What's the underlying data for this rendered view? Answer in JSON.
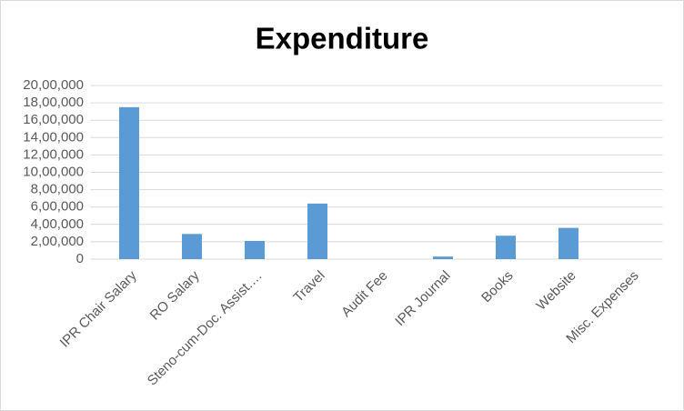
{
  "chart_data": {
    "type": "bar",
    "title": "Expenditure",
    "categories": [
      "IPR Chair Salary",
      "RO Salary",
      "Steno-cum-Doc. Assist.…",
      "Travel",
      "Audit Fee",
      "IPR Journal",
      "Books",
      "Website",
      "Misc. Expenses"
    ],
    "values": [
      1750000,
      290000,
      210000,
      640000,
      0,
      30000,
      270000,
      360000,
      0
    ],
    "color": "#5b9bd5",
    "ylim": [
      0,
      2000000
    ],
    "yticks": [
      0,
      {
        "value": 200000,
        "label": "2,00,000"
      },
      {
        "value": 400000,
        "label": "4,00,000"
      },
      {
        "value": 600000,
        "label": "6,00,000"
      },
      {
        "value": 800000,
        "label": "8,00,000"
      },
      {
        "value": 1000000,
        "label": "10,00,000"
      },
      {
        "value": 1200000,
        "label": "12,00,000"
      },
      {
        "value": 1400000,
        "label": "14,00,000"
      },
      {
        "value": 1600000,
        "label": "16,00,000"
      },
      {
        "value": 1800000,
        "label": "18,00,000"
      },
      {
        "value": 2000000,
        "label": "20,00,000"
      }
    ],
    "grid": true
  }
}
